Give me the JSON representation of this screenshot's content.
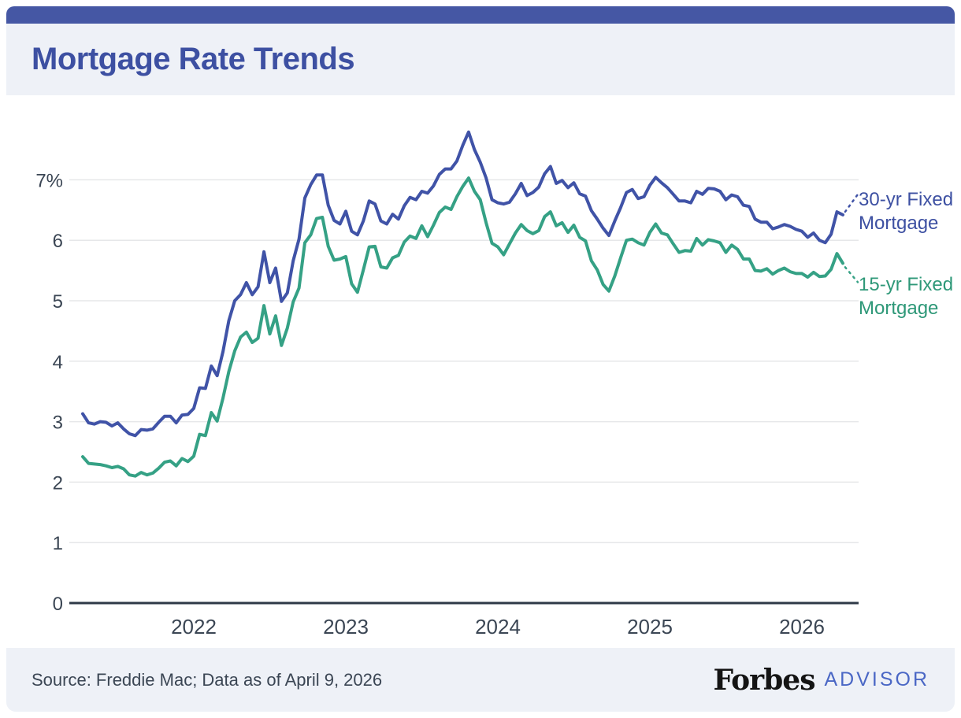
{
  "header": {
    "title": "Mortgage Rate Trends"
  },
  "footer": {
    "source": "Source: Freddie Mac; Data as of April 9, 2026",
    "brand": "Forbes",
    "brand_suffix": "ADVISOR"
  },
  "colors": {
    "accent_bar": "#4557a4",
    "band_bg": "#eef1f7",
    "title_text": "#3d50a2",
    "axis_text": "#3b4654",
    "gridline": "#e6e7e9",
    "axis_line": "#2e3947",
    "footer_text": "#3b4654",
    "forbes_black": "#141414",
    "advisor_blue": "#4a67c5",
    "legend_30yr": "#3d50a2",
    "legend_15yr": "#2e9878"
  },
  "chart_data": {
    "type": "line",
    "title": "Mortgage Rate Trends",
    "xlabel": "",
    "ylabel": "",
    "x_unit": "year (weekly samples, Apr 2021 - Apr 9 2026)",
    "x_start": 2021.2692,
    "x_step": 0.0384615,
    "x_ticks": [
      2022,
      2023,
      2024,
      2025,
      2026
    ],
    "y_ticks": [
      0,
      1,
      2,
      3,
      4,
      5,
      6,
      7
    ],
    "y_tick_labels": [
      "0",
      "1",
      "2",
      "3",
      "4",
      "5",
      "6",
      "7%"
    ],
    "ylim": [
      0,
      8.2
    ],
    "grid": "horizontal",
    "legend_position": "right",
    "series": [
      {
        "name": "30-yr Fixed Mortgage",
        "color": "#4053a7",
        "values": [
          3.13,
          2.98,
          2.96,
          3.0,
          2.99,
          2.93,
          2.98,
          2.88,
          2.8,
          2.77,
          2.87,
          2.86,
          2.88,
          2.99,
          3.09,
          3.09,
          2.98,
          3.11,
          3.12,
          3.22,
          3.56,
          3.55,
          3.92,
          3.76,
          4.16,
          4.67,
          5.0,
          5.1,
          5.3,
          5.1,
          5.23,
          5.81,
          5.3,
          5.54,
          4.99,
          5.13,
          5.66,
          6.02,
          6.7,
          6.92,
          7.08,
          7.08,
          6.58,
          6.33,
          6.27,
          6.48,
          6.15,
          6.09,
          6.32,
          6.65,
          6.6,
          6.32,
          6.27,
          6.43,
          6.35,
          6.57,
          6.71,
          6.67,
          6.81,
          6.78,
          6.9,
          7.09,
          7.18,
          7.18,
          7.31,
          7.57,
          7.79,
          7.5,
          7.29,
          7.03,
          6.67,
          6.62,
          6.6,
          6.63,
          6.77,
          6.94,
          6.74,
          6.79,
          6.88,
          7.1,
          7.22,
          6.94,
          6.99,
          6.87,
          6.95,
          6.77,
          6.73,
          6.49,
          6.35,
          6.2,
          6.08,
          6.32,
          6.54,
          6.79,
          6.84,
          6.69,
          6.72,
          6.91,
          7.04,
          6.95,
          6.87,
          6.76,
          6.65,
          6.65,
          6.62,
          6.81,
          6.76,
          6.86,
          6.85,
          6.81,
          6.67,
          6.75,
          6.72,
          6.58,
          6.56,
          6.35,
          6.3,
          6.3,
          6.19,
          6.22,
          6.26,
          6.23,
          6.18,
          6.15,
          6.05,
          6.12,
          6.0,
          5.96,
          6.1,
          6.47,
          6.42
        ]
      },
      {
        "name": "15-yr Fixed Mortgage",
        "color": "#35a185",
        "values": [
          2.42,
          2.31,
          2.3,
          2.29,
          2.27,
          2.24,
          2.26,
          2.22,
          2.12,
          2.1,
          2.16,
          2.12,
          2.15,
          2.23,
          2.33,
          2.35,
          2.27,
          2.39,
          2.34,
          2.43,
          2.79,
          2.77,
          3.15,
          3.01,
          3.39,
          3.83,
          4.17,
          4.4,
          4.48,
          4.31,
          4.38,
          4.92,
          4.45,
          4.75,
          4.26,
          4.55,
          4.98,
          5.21,
          5.96,
          6.09,
          6.36,
          6.38,
          5.9,
          5.67,
          5.69,
          5.73,
          5.28,
          5.14,
          5.51,
          5.89,
          5.9,
          5.56,
          5.54,
          5.71,
          5.75,
          5.97,
          6.07,
          6.03,
          6.24,
          6.06,
          6.25,
          6.46,
          6.55,
          6.51,
          6.72,
          6.89,
          7.03,
          6.81,
          6.67,
          6.29,
          5.95,
          5.89,
          5.76,
          5.94,
          6.12,
          6.26,
          6.16,
          6.11,
          6.16,
          6.39,
          6.47,
          6.24,
          6.29,
          6.13,
          6.25,
          6.05,
          5.99,
          5.66,
          5.51,
          5.27,
          5.16,
          5.41,
          5.71,
          6.0,
          6.02,
          5.96,
          5.92,
          6.13,
          6.27,
          6.12,
          6.09,
          5.94,
          5.8,
          5.83,
          5.82,
          6.03,
          5.92,
          6.01,
          5.99,
          5.96,
          5.8,
          5.92,
          5.85,
          5.69,
          5.69,
          5.5,
          5.49,
          5.53,
          5.44,
          5.5,
          5.54,
          5.48,
          5.45,
          5.45,
          5.39,
          5.47,
          5.4,
          5.41,
          5.52,
          5.78,
          5.62
        ]
      }
    ]
  }
}
